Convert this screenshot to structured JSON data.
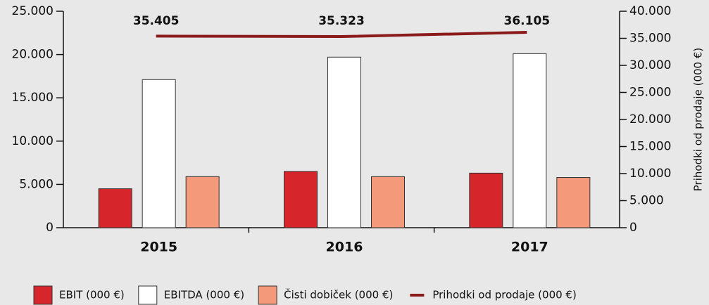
{
  "chart_data": {
    "type": "bar",
    "categories": [
      "2015",
      "2016",
      "2017"
    ],
    "series": [
      {
        "name": "EBIT (000 €)",
        "color": "#d7262b",
        "values": [
          4500,
          6500,
          6300
        ]
      },
      {
        "name": "EBITDA (000 €)",
        "color": "#ffffff",
        "values": [
          17100,
          19700,
          20100
        ]
      },
      {
        "name": "Čisti dobiček (000 €)",
        "color": "#f4997a",
        "values": [
          5900,
          5900,
          5800
        ]
      },
      {
        "name": "Prihodki od prodaje (000 €)",
        "color": "#8b1a1a",
        "type": "line",
        "axis": "y2",
        "values": [
          35405,
          35323,
          36105
        ],
        "value_labels": [
          "35.405",
          "35.323",
          "36.105"
        ]
      }
    ],
    "ylim": [
      0,
      25000
    ],
    "yticks": [
      0,
      {
        "value": 5000,
        "label": "5.000"
      },
      {
        "value": 10000,
        "label": "10.000"
      },
      {
        "value": 15000,
        "label": "15.000"
      },
      {
        "value": 20000,
        "label": "20.000"
      },
      {
        "value": 25000,
        "label": "25.000"
      }
    ],
    "y2lim": [
      0,
      40000
    ],
    "y2ticks": [
      0,
      {
        "value": 5000,
        "label": "5.000"
      },
      {
        "value": 10000,
        "label": "10.000"
      },
      {
        "value": 15000,
        "label": "15.000"
      },
      {
        "value": 20000,
        "label": "20.000"
      },
      {
        "value": 25000,
        "label": "25.000"
      },
      {
        "value": 30000,
        "label": "30.000"
      },
      {
        "value": 35000,
        "label": "35.000"
      },
      {
        "value": 40000,
        "label": "40.000"
      }
    ],
    "y2label": "Prihodki od prodaje (000 €)",
    "legend": "bottom"
  }
}
